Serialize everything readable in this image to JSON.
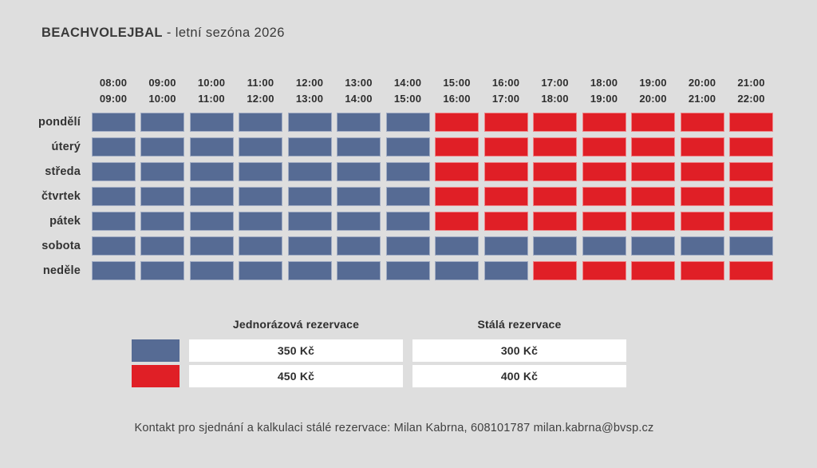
{
  "page": {
    "background": "#dedede"
  },
  "header": {
    "title_brand": "BEACHVOLEJBAL",
    "title_suffix": " - letní sezóna 2026"
  },
  "chart_data": {
    "type": "heatmap",
    "title": "BEACHVOLEJBAL - letní sezóna 2026",
    "x_categories": [
      {
        "start": "08:00",
        "end": "09:00"
      },
      {
        "start": "09:00",
        "end": "10:00"
      },
      {
        "start": "10:00",
        "end": "11:00"
      },
      {
        "start": "11:00",
        "end": "12:00"
      },
      {
        "start": "12:00",
        "end": "13:00"
      },
      {
        "start": "13:00",
        "end": "14:00"
      },
      {
        "start": "14:00",
        "end": "15:00"
      },
      {
        "start": "15:00",
        "end": "16:00"
      },
      {
        "start": "16:00",
        "end": "17:00"
      },
      {
        "start": "17:00",
        "end": "18:00"
      },
      {
        "start": "18:00",
        "end": "19:00"
      },
      {
        "start": "19:00",
        "end": "20:00"
      },
      {
        "start": "20:00",
        "end": "21:00"
      },
      {
        "start": "21:00",
        "end": "22:00"
      }
    ],
    "y_categories": [
      "pondělí",
      "úterý",
      "středa",
      "čtvrtek",
      "pátek",
      "sobota",
      "neděle"
    ],
    "values": [
      [
        "blue",
        "blue",
        "blue",
        "blue",
        "blue",
        "blue",
        "blue",
        "red",
        "red",
        "red",
        "red",
        "red",
        "red",
        "red"
      ],
      [
        "blue",
        "blue",
        "blue",
        "blue",
        "blue",
        "blue",
        "blue",
        "red",
        "red",
        "red",
        "red",
        "red",
        "red",
        "red"
      ],
      [
        "blue",
        "blue",
        "blue",
        "blue",
        "blue",
        "blue",
        "blue",
        "red",
        "red",
        "red",
        "red",
        "red",
        "red",
        "red"
      ],
      [
        "blue",
        "blue",
        "blue",
        "blue",
        "blue",
        "blue",
        "blue",
        "red",
        "red",
        "red",
        "red",
        "red",
        "red",
        "red"
      ],
      [
        "blue",
        "blue",
        "blue",
        "blue",
        "blue",
        "blue",
        "blue",
        "red",
        "red",
        "red",
        "red",
        "red",
        "red",
        "red"
      ],
      [
        "blue",
        "blue",
        "blue",
        "blue",
        "blue",
        "blue",
        "blue",
        "blue",
        "blue",
        "blue",
        "blue",
        "blue",
        "blue",
        "blue"
      ],
      [
        "blue",
        "blue",
        "blue",
        "blue",
        "blue",
        "blue",
        "blue",
        "blue",
        "blue",
        "red",
        "red",
        "red",
        "red",
        "red"
      ]
    ],
    "cell_colors": {
      "blue": "#566b94",
      "red": "#e01f26"
    },
    "cell_meaning": {
      "blue": {
        "jednorazova_rezervace": "350 Kč",
        "stala_rezervace": "300 Kč"
      },
      "red": {
        "jednorazova_rezervace": "450 Kč",
        "stala_rezervace": "400 Kč"
      }
    },
    "legend_position": "bottom"
  },
  "legend": {
    "column_headers": [
      "Jednorázová rezervace",
      "Stálá rezervace"
    ],
    "rows": [
      {
        "swatch": "blue",
        "prices": [
          "350 Kč",
          "300 Kč"
        ]
      },
      {
        "swatch": "red",
        "prices": [
          "450 Kč",
          "400 Kč"
        ]
      }
    ]
  },
  "footer": {
    "contact": "Kontakt pro sjednání a kalkulaci stálé rezervace: Milan Kabrna, 608101787 milan.kabrna@bvsp.cz"
  }
}
